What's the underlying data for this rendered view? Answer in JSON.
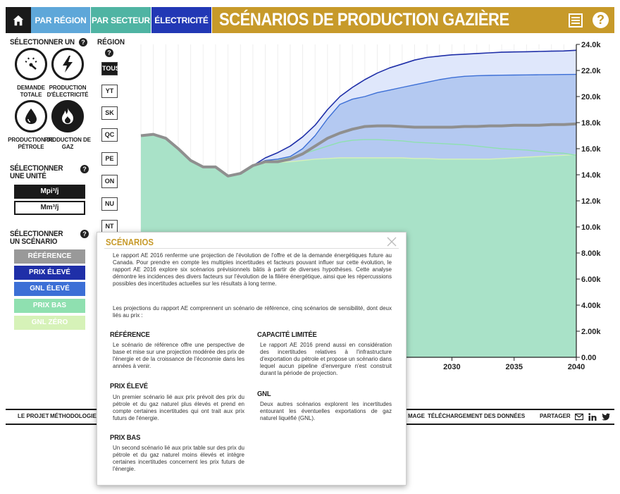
{
  "header": {
    "tabs": [
      {
        "label": "PAR RÉGION"
      },
      {
        "label": "PAR SECTEUR"
      },
      {
        "label": "ÉLECTRICITÉ"
      }
    ],
    "title": "SCÉNARIOS DE PRODUCTION GAZIÈRE",
    "help": "?"
  },
  "left_panel": {
    "select_one_label": "SÉLECTIONNER UN",
    "categories": [
      {
        "label": "DEMANDE TOTALE",
        "icon": "gauge-icon"
      },
      {
        "label": "PRODUCTION D'ÉLECTRICITÉ",
        "icon": "lightning-icon"
      },
      {
        "label": "PRODUCTION DE PÉTROLE",
        "icon": "oil-drop-icon"
      },
      {
        "label": "PRODUCTION DE GAZ",
        "icon": "flame-icon"
      }
    ],
    "unit_label": "SÉLECTIONNER UNE UNITÉ",
    "units": [
      "Mpi³/j",
      "Mm³/j"
    ],
    "scenario_label": "SÉLECTIONNER UN SCÉNARIO",
    "scenarios": [
      {
        "label": "RÉFÉRENCE",
        "color": "#999999"
      },
      {
        "label": "PRIX ÉLEVÉ",
        "color": "#1f2fa8"
      },
      {
        "label": "GNL ÉLEVÉ",
        "color": "#3c6fd6"
      },
      {
        "label": "PRIX BAS",
        "color": "#8fe0b0"
      },
      {
        "label": "GNL ZÉRO",
        "color": "#d6f2b8"
      }
    ],
    "qmark": "?"
  },
  "regions": {
    "label": "RÉGION",
    "items": [
      "TOUS",
      "YT",
      "SK",
      "QC",
      "PE",
      "ON",
      "NU",
      "NT"
    ]
  },
  "chart_data": {
    "type": "area",
    "x": [
      2005,
      2006,
      2007,
      2008,
      2009,
      2010,
      2011,
      2012,
      2013,
      2014,
      2015,
      2016,
      2017,
      2018,
      2019,
      2020,
      2021,
      2022,
      2023,
      2024,
      2025,
      2026,
      2027,
      2028,
      2029,
      2030,
      2031,
      2032,
      2033,
      2034,
      2035,
      2036,
      2037,
      2038,
      2039,
      2040
    ],
    "y_ticks": [
      "0.00",
      "2.00k",
      "4.00k",
      "6.00k",
      "8.00k",
      "10.0k",
      "12.0k",
      "14.0k",
      "16.0k",
      "18.0k",
      "20.0k",
      "22.0k",
      "24.0k"
    ],
    "x_ticks": [
      "2030",
      "2035",
      "2040"
    ],
    "ylim": [
      0,
      24000
    ],
    "xlim": [
      2005,
      2040
    ],
    "series": [
      {
        "name": "PRIX ÉLEVÉ",
        "color": "#1f2fa8",
        "values": [
          17000,
          17100,
          16800,
          16000,
          15100,
          14600,
          14600,
          13900,
          14100,
          14700,
          15300,
          15700,
          16200,
          16900,
          17800,
          19000,
          20000,
          20700,
          21300,
          21800,
          22200,
          22500,
          22800,
          23000,
          23100,
          23200,
          23250,
          23300,
          23350,
          23400,
          23420,
          23440,
          23460,
          23480,
          23500,
          23550
        ]
      },
      {
        "name": "GNL ÉLEVÉ",
        "color": "#3c6fd6",
        "values": [
          17000,
          17100,
          16800,
          16000,
          15100,
          14600,
          14600,
          13900,
          14100,
          14700,
          15100,
          15200,
          15400,
          16000,
          17000,
          18300,
          19400,
          19800,
          20000,
          20300,
          20500,
          20700,
          20900,
          21100,
          21300,
          21450,
          21550,
          21600,
          21620,
          21640,
          21650,
          21660,
          21670,
          21680,
          21690,
          21700
        ]
      },
      {
        "name": "RÉFÉRENCE",
        "color": "#999999",
        "values": [
          17000,
          17100,
          16800,
          16000,
          15100,
          14600,
          14600,
          13900,
          14100,
          14700,
          15000,
          15000,
          15200,
          15600,
          16200,
          16800,
          17200,
          17500,
          17700,
          17750,
          17750,
          17700,
          17650,
          17650,
          17650,
          17650,
          17700,
          17700,
          17750,
          17750,
          17800,
          17800,
          17800,
          17850,
          17850,
          17900
        ]
      },
      {
        "name": "PRIX BAS",
        "color": "#8fe0b0",
        "values": [
          17000,
          17100,
          16800,
          16000,
          15100,
          14600,
          14600,
          13900,
          14100,
          14700,
          15000,
          15100,
          15300,
          15600,
          15900,
          16200,
          16500,
          16650,
          16700,
          16700,
          16650,
          16600,
          16500,
          16450,
          16400,
          16350,
          16300,
          16200,
          16100,
          16000,
          15950,
          15900,
          15800,
          15700,
          15650,
          15500
        ]
      },
      {
        "name": "GNL ZÉRO",
        "color": "#d6f2b8",
        "values": [
          17000,
          17100,
          16800,
          16000,
          15100,
          14600,
          14600,
          13900,
          14100,
          14700,
          14900,
          14950,
          15000,
          15100,
          15200,
          15250,
          15300,
          15300,
          15300,
          15300,
          15300,
          15300,
          15250,
          15250,
          15200,
          15200,
          15200,
          15200,
          15200,
          15250,
          15300,
          15350,
          15400,
          15450,
          15500,
          15550
        ]
      }
    ]
  },
  "footer": {
    "links": [
      "LE PROJET",
      "MÉTHODOLOGIE",
      "MAGE",
      "TÉLÉCHARGEMENT DES DONNÉES",
      "PARTAGER"
    ]
  },
  "modal": {
    "title": "SCÉNARIOS",
    "intro": "Le rapport AE 2016 renferme une projection de l'évolution de l'offre et de la demande énergétiques future au Canada. Pour prendre en compte les multiples incertitudes et facteurs pouvant influer sur cette évolution, le rapport AE 2016 explore six scénarios prévisionnels bâtis à partir de diverses hypothèses. Cette analyse démontre les incidences des divers facteurs sur l'évolution de la filière énergétique, ainsi que les répercussions possibles des incertitudes actuelles sur les résultats à long terme.",
    "intro2": "Les projections du rapport AE comprennent un scénario de référence, cinq scénarios de sensibilité, dont deux liés au prix :",
    "sections": [
      {
        "title": "RÉFÉRENCE",
        "text": "Le scénario de référence offre une perspective de base et mise sur une projection modérée des prix de l'énergie et de la croissance de l'économie dans les années à venir."
      },
      {
        "title": "PRIX ÉLEVÉ",
        "text": "Un premier scénario lié aux prix prévoit des prix du pétrole et du gaz naturel plus élevés et prend en compte certaines incertitudes qui ont trait aux prix futurs de l'énergie."
      },
      {
        "title": "PRIX BAS",
        "text": "Un second scénario lié aux prix table sur des prix du pétrole et du gaz naturel moins élevés et intègre certaines incertitudes concernent les prix futurs de l'énergie."
      },
      {
        "title": "CAPACITÉ LIMITÉE",
        "text": "Le rapport AE 2016 prend aussi en considération des incertitudes relatives à l'infrastructure d'exportation du pétrole et propose un scénario dans lequel aucun pipeline d'envergure n'est construit durant la période de projection."
      },
      {
        "title": "GNL",
        "text": "Deux autres scénarios explorent les incertitudes entourant les éventuelles exportations de gaz naturel liquéfié (GNL)."
      }
    ]
  }
}
